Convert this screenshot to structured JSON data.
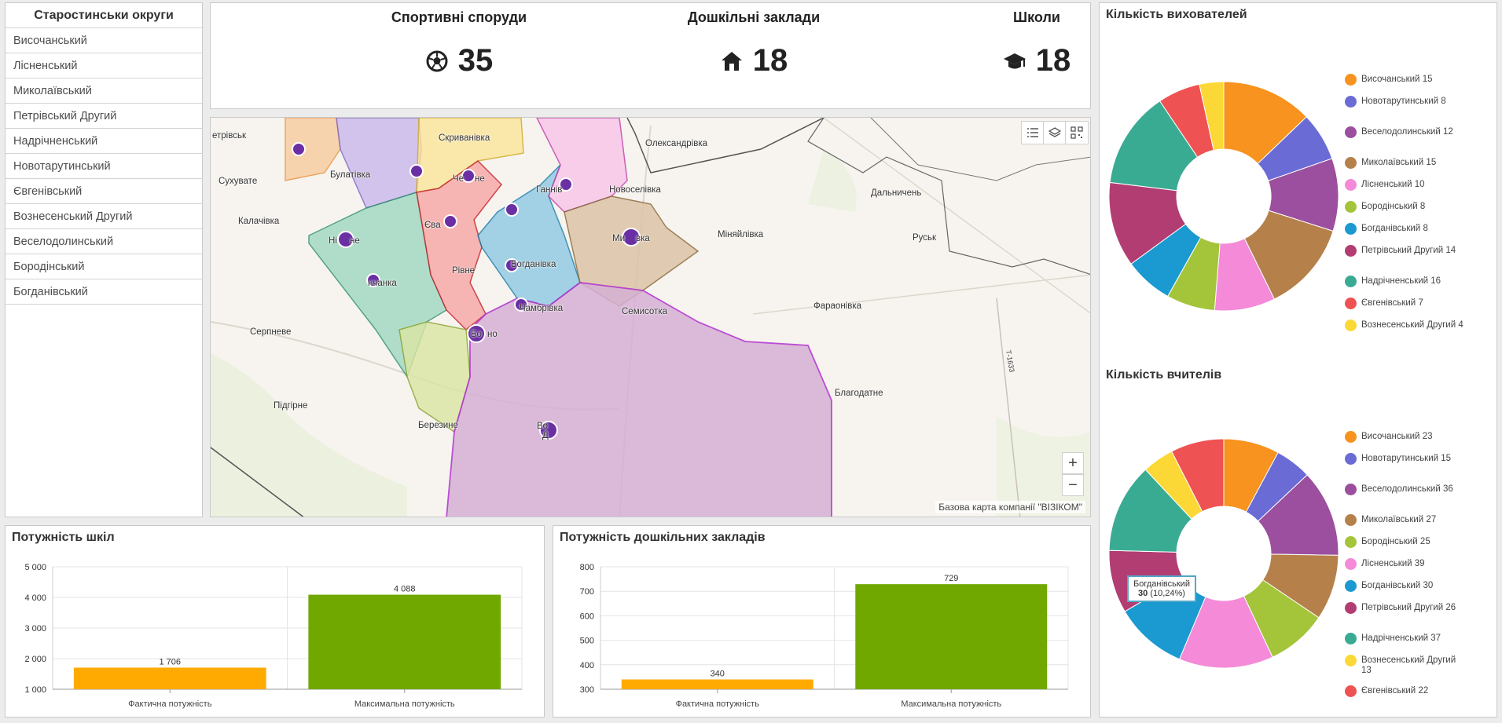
{
  "sidebar": {
    "title": "Старостинськи округи",
    "items": [
      "Височанський",
      "Лісненський",
      "Миколаївський",
      "Петрівський Другий",
      "Надрічненський",
      "Новотарутинський",
      "Євгенівський",
      "Вознесенський Другий",
      "Веселодолинський",
      "Бородінський",
      "Богданівський"
    ]
  },
  "indicators": [
    {
      "label": "Спортивні споруди",
      "value": "35",
      "icon": "soccer-ball-icon"
    },
    {
      "label": "Дошкільні заклади",
      "value": "18",
      "icon": "house-icon"
    },
    {
      "label": "Школи",
      "value": "18",
      "icon": "graduation-cap-icon"
    }
  ],
  "map": {
    "attribution": "Базова карта компанії \"ВІЗІКОМ\"",
    "zoom_in": "+",
    "zoom_out": "−",
    "places": [
      "етрівськ",
      "Скриванівка",
      "Олександрівка",
      "Сухувате",
      "Булатівка",
      "Че",
      "не",
      "Ганнів",
      "Новоселівка",
      "Дальничень",
      "Калачівка",
      "Єва",
      "Ні",
      "не",
      "Ми",
      "вка",
      "Міняйлівка",
      "Руськ",
      "Богданівка",
      "Рівне",
      "нчанка",
      "Семисотка",
      "Фараонівка",
      "Серпневе",
      "Бо",
      "но",
      "Чамбрівка",
      "Благодатне",
      "Підгірне",
      "Березине",
      "Во",
      "Д"
    ],
    "road_label": "Т-1633"
  },
  "pie_educators": {
    "title": "Кількість вихователей",
    "data": [
      {
        "name": "Височанський",
        "value": 15,
        "color": "#f7931e"
      },
      {
        "name": "Новотарутинський",
        "value": 8,
        "color": "#6b6bd6"
      },
      {
        "name": "Веселодолинський",
        "value": 12,
        "color": "#9b4f9e"
      },
      {
        "name": "Миколаївський",
        "value": 15,
        "color": "#b5804a"
      },
      {
        "name": "Лісненський",
        "value": 10,
        "color": "#f48ad8"
      },
      {
        "name": "Бородінський",
        "value": 8,
        "color": "#a4c43a"
      },
      {
        "name": "Богданівський",
        "value": 8,
        "color": "#1a9ad0"
      },
      {
        "name": "Петрівський Другий",
        "value": 14,
        "color": "#b23d72"
      },
      {
        "name": "Надрічненський",
        "value": 16,
        "color": "#3aab93"
      },
      {
        "name": "Євгенівський",
        "value": 7,
        "color": "#ef5252"
      },
      {
        "name": "Вознесенський Другий",
        "value": 4,
        "color": "#fbd836"
      }
    ]
  },
  "pie_teachers": {
    "title": "Кількість вчителів",
    "data": [
      {
        "name": "Височанський",
        "value": 23,
        "color": "#f7931e"
      },
      {
        "name": "Новотарутинський",
        "value": 15,
        "color": "#6b6bd6"
      },
      {
        "name": "Веселодолинський",
        "value": 36,
        "color": "#9b4f9e"
      },
      {
        "name": "Миколаївський",
        "value": 27,
        "color": "#b5804a"
      },
      {
        "name": "Бородінський",
        "value": 25,
        "color": "#a4c43a"
      },
      {
        "name": "Лісненський",
        "value": 39,
        "color": "#f48ad8"
      },
      {
        "name": "Богданівський",
        "value": 30,
        "color": "#1a9ad0"
      },
      {
        "name": "Петрівський Другий",
        "value": 26,
        "color": "#b23d72"
      },
      {
        "name": "Надрічненський",
        "value": 37,
        "color": "#3aab93"
      },
      {
        "name": "Вознесенський Другий",
        "value": 13,
        "color": "#fbd836"
      },
      {
        "name": "Євгенівський",
        "value": 22,
        "color": "#ef5252"
      }
    ],
    "tooltip": {
      "name": "Богданівський",
      "value": "30",
      "percent": "(10,24%)"
    }
  },
  "bar_schools": {
    "title": "Потужність шкіл",
    "chart_data": {
      "type": "bar",
      "categories": [
        "Фактична потужність",
        "Максимальна потужність"
      ],
      "values": [
        1706,
        4088
      ],
      "labels": [
        "1 706",
        "4 088"
      ],
      "colors": [
        "#ffaa00",
        "#70a800"
      ],
      "ylim": [
        1000,
        5000
      ],
      "yticks": [
        "1 000",
        "2 000",
        "3 000",
        "4 000",
        "5 000"
      ],
      "ytick_values": [
        1000,
        2000,
        3000,
        4000,
        5000
      ]
    }
  },
  "bar_preschool": {
    "title": "Потужність дошкільних закладів",
    "chart_data": {
      "type": "bar",
      "categories": [
        "Фактична потужність",
        "Максимальна потужність"
      ],
      "values": [
        340,
        729
      ],
      "labels": [
        "340",
        "729"
      ],
      "colors": [
        "#ffaa00",
        "#70a800"
      ],
      "ylim": [
        300,
        800
      ],
      "yticks": [
        "300",
        "400",
        "500",
        "600",
        "700",
        "800"
      ],
      "ytick_values": [
        300,
        400,
        500,
        600,
        700,
        800
      ]
    }
  }
}
